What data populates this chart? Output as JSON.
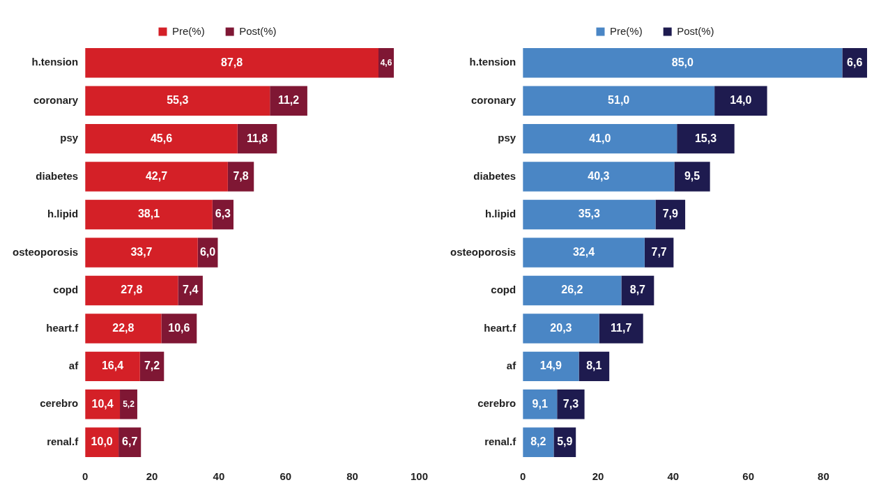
{
  "chart_data": [
    {
      "type": "bar",
      "orientation": "horizontal",
      "stacked": true,
      "grid": false,
      "legend": "top",
      "categories": [
        "h.tension",
        "coronary",
        "psy",
        "diabetes",
        "h.lipid",
        "osteoporosis",
        "copd",
        "heart.f",
        "af",
        "cerebro",
        "renal.f"
      ],
      "xlim": [
        0,
        100
      ],
      "xticks": [
        0,
        20,
        40,
        60,
        80,
        100
      ],
      "series": [
        {
          "name": "Pre(%)",
          "color": "#d42027",
          "values": [
            87.8,
            55.3,
            45.6,
            42.7,
            38.1,
            33.7,
            27.8,
            22.8,
            16.4,
            10.4,
            10.0
          ],
          "value_labels": [
            "87,8",
            "55,3",
            "45,6",
            "42,7",
            "38,1",
            "33,7",
            "27,8",
            "22,8",
            "16,4",
            "10,4",
            "10,0"
          ]
        },
        {
          "name": "Post(%)",
          "color": "#7f1734",
          "values": [
            4.6,
            11.2,
            11.8,
            7.8,
            6.3,
            6.0,
            7.4,
            10.6,
            7.2,
            5.2,
            6.7
          ],
          "value_labels": [
            "4,6",
            "11,2",
            "11,8",
            "7,8",
            "6,3",
            "6,0",
            "7,4",
            "10,6",
            "7,2",
            "5,2",
            "6,7"
          ]
        }
      ]
    },
    {
      "type": "bar",
      "orientation": "horizontal",
      "stacked": true,
      "grid": false,
      "legend": "top",
      "categories": [
        "h.tension",
        "coronary",
        "psy",
        "diabetes",
        "h.lipid",
        "osteoporosis",
        "copd",
        "heart.f",
        "af",
        "cerebro",
        "renal.f"
      ],
      "xlim": [
        0,
        91.6
      ],
      "xticks": [
        0,
        20,
        40,
        60,
        80
      ],
      "series": [
        {
          "name": "Pre(%)",
          "color": "#4a86c5",
          "values": [
            85.0,
            51.0,
            41.0,
            40.3,
            35.3,
            32.4,
            26.2,
            20.3,
            14.9,
            9.1,
            8.2
          ],
          "value_labels": [
            "85,0",
            "51,0",
            "41,0",
            "40,3",
            "35,3",
            "32,4",
            "26,2",
            "20,3",
            "14,9",
            "9,1",
            "8,2"
          ]
        },
        {
          "name": "Post(%)",
          "color": "#1e1b4f",
          "values": [
            6.6,
            14.0,
            15.3,
            9.5,
            7.9,
            7.7,
            8.7,
            11.7,
            8.1,
            7.3,
            5.9
          ],
          "value_labels": [
            "6,6",
            "14,0",
            "15,3",
            "9,5",
            "7,9",
            "7,7",
            "8,7",
            "11,7",
            "8,1",
            "7,3",
            "5,9"
          ]
        }
      ]
    }
  ]
}
